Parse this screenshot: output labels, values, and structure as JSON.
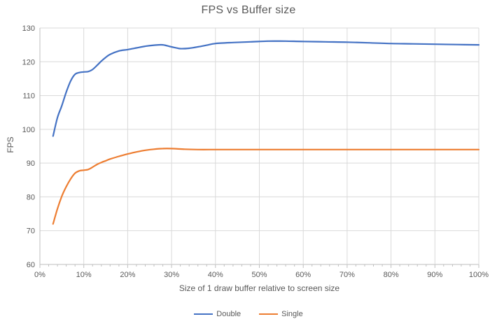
{
  "colors": {
    "background": "#FFFFFF",
    "gridline": "#D9D9D9",
    "axis_line": "#BFBFBF",
    "text": "#595959",
    "series_double": "#4472C4",
    "series_single": "#ED7D31"
  },
  "chart_data": {
    "type": "line",
    "title": "FPS vs Buffer size",
    "xlabel": "Size of 1 draw buffer relative to screen size",
    "ylabel": "FPS",
    "xlim": [
      0,
      100
    ],
    "ylim": [
      60,
      130
    ],
    "grid": true,
    "legend_position": "bottom",
    "x_ticks_major": [
      0,
      10,
      20,
      30,
      40,
      50,
      60,
      70,
      80,
      90,
      100
    ],
    "x_tick_labels": [
      "0%",
      "10%",
      "20%",
      "30%",
      "40%",
      "50%",
      "60%",
      "70%",
      "80%",
      "90%",
      "100%"
    ],
    "x_minor_tick_step": 2,
    "y_ticks": [
      60,
      70,
      80,
      90,
      100,
      110,
      120,
      130
    ],
    "y_tick_labels": [
      "60",
      "70",
      "80",
      "90",
      "100",
      "110",
      "120",
      "130"
    ],
    "series": [
      {
        "name": "Double",
        "color": "#4472C4",
        "x": [
          3,
          4,
          5,
          6,
          7,
          8,
          9,
          10,
          11,
          12,
          13,
          14,
          15,
          16,
          18,
          20,
          22,
          24,
          26,
          28,
          30,
          32,
          34,
          36,
          38,
          40,
          44,
          48,
          52,
          56,
          60,
          65,
          70,
          75,
          80,
          85,
          90,
          95,
          100
        ],
        "y": [
          98,
          103.5,
          107,
          111,
          114.3,
          116.3,
          116.8,
          117,
          117.1,
          117.7,
          118.9,
          120.2,
          121.3,
          122.2,
          123.2,
          123.6,
          124.1,
          124.6,
          124.9,
          125,
          124.4,
          123.9,
          124,
          124.4,
          124.9,
          125.4,
          125.7,
          125.9,
          126.1,
          126.1,
          126,
          125.9,
          125.8,
          125.6,
          125.4,
          125.3,
          125.2,
          125.1,
          125
        ]
      },
      {
        "name": "Single",
        "color": "#ED7D31",
        "x": [
          3,
          4,
          5,
          6,
          7,
          8,
          9,
          10,
          11,
          12,
          13,
          14,
          15,
          16,
          18,
          20,
          22,
          24,
          26,
          28,
          30,
          33,
          36,
          40,
          45,
          50,
          55,
          60,
          65,
          70,
          75,
          80,
          85,
          90,
          95,
          100
        ],
        "y": [
          72,
          76.5,
          80.2,
          83,
          85.3,
          87,
          87.7,
          87.9,
          88.1,
          88.8,
          89.6,
          90.2,
          90.7,
          91.2,
          92,
          92.7,
          93.3,
          93.8,
          94.1,
          94.3,
          94.3,
          94.1,
          94,
          94,
          94,
          94,
          94,
          94,
          94,
          94,
          94,
          94,
          94,
          94,
          94,
          94
        ]
      }
    ]
  }
}
